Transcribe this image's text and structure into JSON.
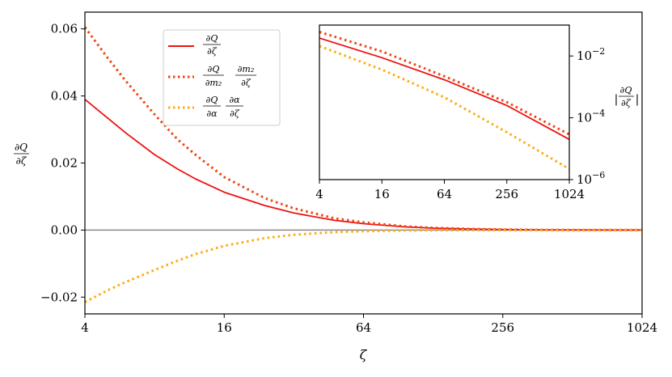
{
  "chart_data": [
    {
      "type": "line",
      "xlabel": "ζ",
      "ylabel": "∂Q/∂ζ",
      "x_scale": "log2",
      "xlim": [
        4,
        1024
      ],
      "ylim": [
        -0.025,
        0.065
      ],
      "x_ticks": [
        4,
        16,
        64,
        256,
        1024
      ],
      "x_tick_labels": [
        "4",
        "16",
        "64",
        "256",
        "1024"
      ],
      "y_ticks": [
        -0.02,
        0.0,
        0.02,
        0.04,
        0.06
      ],
      "y_tick_labels": [
        "−0.02",
        "0.00",
        "0.02",
        "0.04",
        "0.06"
      ],
      "zero_line": true,
      "grid": false,
      "legend_position": "upper-left",
      "series": [
        {
          "name": "∂Q/∂ζ",
          "style": "solid",
          "color": "#ee1111",
          "x": [
            4,
            5,
            6,
            8,
            10,
            12,
            16,
            24,
            32,
            48,
            64,
            96,
            128,
            192,
            256,
            384,
            512,
            768,
            1024
          ],
          "y": [
            0.039,
            0.0335,
            0.029,
            0.0225,
            0.0183,
            0.0153,
            0.0113,
            0.0073,
            0.0051,
            0.0029,
            0.0019,
            0.00097,
            0.00058,
            0.00028,
            0.00016,
            8e-05,
            5e-05,
            3e-05,
            2e-05
          ]
        },
        {
          "name": "∂Q/∂m2 ∂m2/∂ζ",
          "style": "dotted",
          "color": "#ee4411",
          "x": [
            4,
            5,
            6,
            8,
            10,
            12,
            16,
            24,
            32,
            48,
            64,
            96,
            128,
            192,
            256,
            384,
            512,
            768,
            1024
          ],
          "y": [
            0.0605,
            0.0515,
            0.0445,
            0.0345,
            0.0272,
            0.0225,
            0.0158,
            0.0095,
            0.0065,
            0.0035,
            0.0023,
            0.0011,
            0.00065,
            0.0003,
            0.00017,
            8e-05,
            5e-05,
            3e-05,
            2e-05
          ]
        },
        {
          "name": "∂Q/∂α ∂α/∂ζ",
          "style": "dotted",
          "color": "#ffaa11",
          "x": [
            4,
            5,
            6,
            8,
            10,
            12,
            16,
            24,
            32,
            48,
            64,
            96,
            128,
            192,
            256,
            384,
            512,
            768,
            1024
          ],
          "y": [
            -0.0215,
            -0.018,
            -0.0155,
            -0.0119,
            -0.0092,
            -0.0072,
            -0.0047,
            -0.0024,
            -0.0014,
            -0.0006,
            -0.00035,
            -0.00012,
            -7e-05,
            -3e-05,
            -1e-05,
            -5e-06,
            -3e-06,
            -1e-06,
            0.0
          ]
        }
      ]
    },
    {
      "type": "line",
      "role": "inset",
      "position": "upper-right",
      "ylabel": "|∂Q/∂ζ|",
      "x_scale": "log2",
      "y_scale": "log10",
      "xlim": [
        4,
        1024
      ],
      "ylim": [
        1e-06,
        0.1
      ],
      "x_ticks": [
        4,
        16,
        64,
        256,
        1024
      ],
      "x_tick_labels": [
        "4",
        "16",
        "64",
        "256",
        "1024"
      ],
      "y_ticks": [
        1e-06,
        0.0001,
        0.01
      ],
      "y_tick_labels": [
        "10",
        "10",
        "10"
      ],
      "y_tick_exponents": [
        "−6",
        "−4",
        "−2"
      ],
      "series": [
        {
          "style": "solid",
          "color": "#ee1111",
          "x": [
            4,
            16,
            64,
            256,
            1024
          ],
          "y": [
            0.038,
            0.0088,
            0.0017,
            0.00025,
            2e-05
          ]
        },
        {
          "style": "dotted",
          "color": "#ee4411",
          "x": [
            4,
            16,
            64,
            256,
            1024
          ],
          "y": [
            0.06,
            0.014,
            0.0022,
            0.00032,
            2.9e-05
          ]
        },
        {
          "style": "dotted",
          "color": "#ffaa11",
          "x": [
            4,
            16,
            64,
            256,
            1024
          ],
          "y": [
            0.021,
            0.0036,
            0.00046,
            3.4e-05,
            2.2e-06
          ]
        }
      ]
    }
  ]
}
